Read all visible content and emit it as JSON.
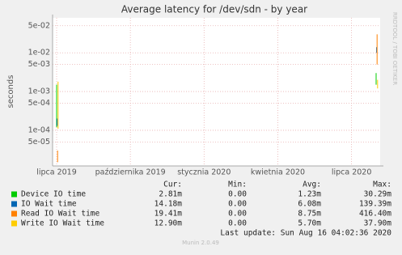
{
  "chart_data": {
    "type": "line",
    "title": "Average latency for /dev/sdn - by year",
    "y_label": "seconds",
    "log_scale": true,
    "grid": true,
    "side_text": "RRDTOOL / TOBI OETIKER",
    "x": [
      "2019-07",
      "2019-07",
      "2019-08",
      "2020-08",
      "2020-08"
    ],
    "xlim": [
      "2019-07",
      "2020-08"
    ],
    "xticks": [
      {
        "value": "2019-07",
        "label": "lipca 2019"
      },
      {
        "value": "2019-10",
        "label": "października 2019"
      },
      {
        "value": "2020-01",
        "label": "stycznia 2020"
      },
      {
        "value": "2020-04",
        "label": "kwietnia 2020"
      },
      {
        "value": "2020-07",
        "label": "lipca 2020"
      }
    ],
    "ylim": [
      1.2e-05,
      0.08
    ],
    "yticks": [
      {
        "value": 5e-05,
        "label": "5e-05"
      },
      {
        "value": 0.0001,
        "label": "1e-04"
      },
      {
        "value": 0.0005,
        "label": "5e-04"
      },
      {
        "value": 0.001,
        "label": "1e-03"
      },
      {
        "value": 0.005,
        "label": "5e-03"
      },
      {
        "value": 0.01,
        "label": "1e-02"
      },
      {
        "value": 0.05,
        "label": "5e-02"
      }
    ],
    "columns": [
      "Cur:",
      "Min:",
      "Avg:",
      "Max:"
    ],
    "series": [
      {
        "name": "Device IO time",
        "color": "#00cc00",
        "values": [
          0.00012,
          0.0015,
          null,
          0.0015,
          0.003
        ],
        "stats": [
          "2.81m",
          "0.00",
          "1.23m",
          "30.29m"
        ]
      },
      {
        "name": "IO Wait time",
        "color": "#0066b3",
        "values": [
          0.00013,
          0.0002,
          null,
          0.01,
          0.014
        ],
        "stats": [
          "14.18m",
          "0.00",
          "6.08m",
          "139.39m"
        ]
      },
      {
        "name": "Read IO Wait time",
        "color": "#ff8000",
        "values": [
          1.5e-05,
          3e-05,
          null,
          0.005,
          0.03
        ],
        "stats": [
          "19.41m",
          "0.00",
          "8.75m",
          "416.40m"
        ]
      },
      {
        "name": "Write IO Wait time",
        "color": "#ffcc00",
        "values": [
          0.00011,
          0.0018,
          null,
          0.0012,
          0.002
        ],
        "stats": [
          "12.90m",
          "0.00",
          "5.70m",
          "37.90m"
        ]
      }
    ],
    "last_update": "Last update: Sun Aug 16 04:02:36 2020",
    "footer": "Munin 2.0.49"
  }
}
